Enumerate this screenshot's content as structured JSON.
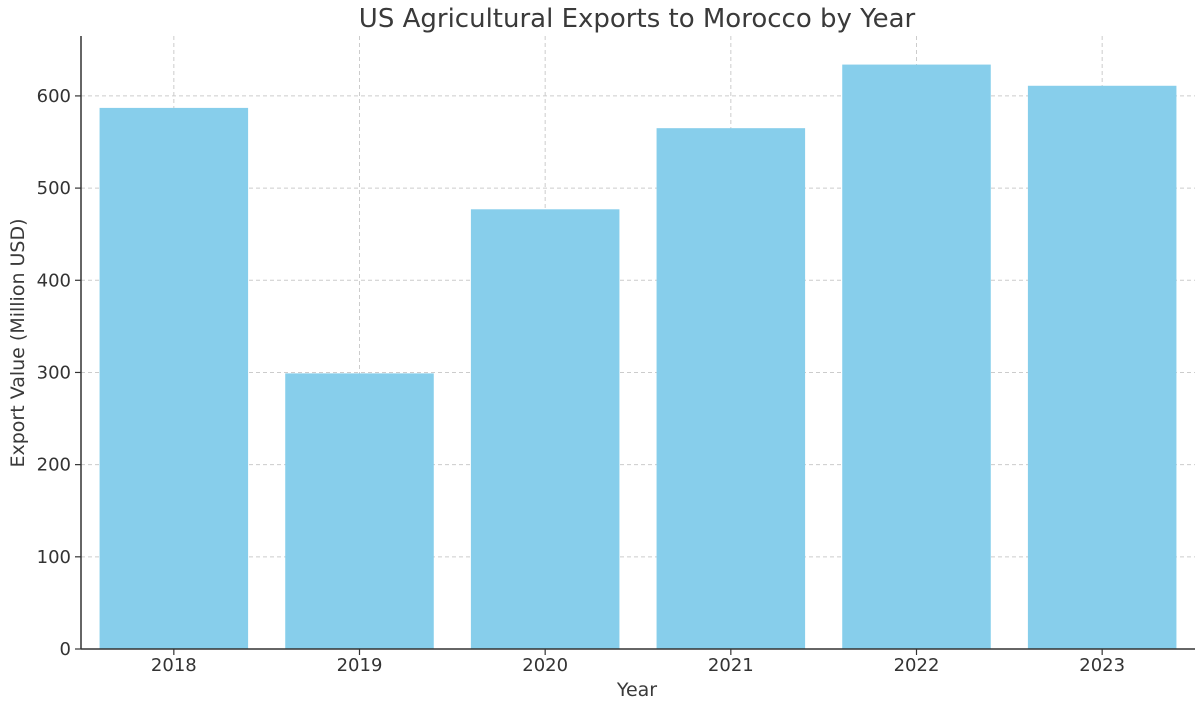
{
  "chart_data": {
    "type": "bar",
    "title": "US Agricultural Exports to Morocco by Year",
    "xlabel": "Year",
    "ylabel": "Export Value (Million USD)",
    "categories": [
      "2018",
      "2019",
      "2020",
      "2021",
      "2022",
      "2023"
    ],
    "values": [
      587,
      299,
      477,
      565,
      634,
      611
    ],
    "ylim": [
      0,
      665
    ],
    "yticks": [
      0,
      100,
      200,
      300,
      400,
      500,
      600
    ],
    "grid": true,
    "bar_color": "#87CEEB"
  }
}
